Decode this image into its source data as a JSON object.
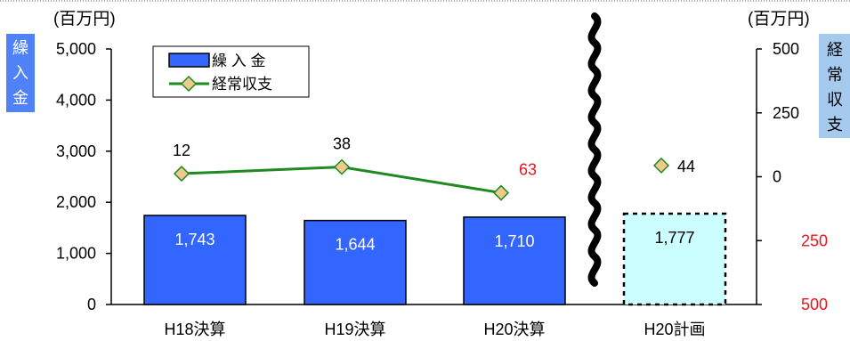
{
  "chart_data": {
    "type": "bar",
    "categories": [
      "H18決算",
      "H19決算",
      "H20決算",
      "H20計画"
    ],
    "left_axis": {
      "unit": "(百万円)",
      "label": "繰入金",
      "range": [
        0,
        5000
      ],
      "ticks": [
        "0",
        "1,000",
        "2,000",
        "3,000",
        "4,000",
        "5,000"
      ]
    },
    "right_axis": {
      "unit": "(百万円)",
      "label": "経常収支",
      "range": [
        -500,
        500
      ],
      "ticks": [
        "500",
        "250",
        "0",
        "250",
        "500"
      ],
      "negative_tick_color": "#e8161b"
    },
    "series": [
      {
        "name": "繰 入 金",
        "type": "bar",
        "axis": "left",
        "values": [
          1743,
          1644,
          1710,
          1777
        ],
        "labels": [
          "1,743",
          "1,644",
          "1,710",
          "1,777"
        ],
        "color": "#3366ff",
        "planned_color": "#ccffff"
      },
      {
        "name": "経常収支",
        "type": "line",
        "axis": "right",
        "values": [
          12,
          38,
          -63,
          44
        ],
        "labels": [
          "12",
          "38",
          "63",
          "44"
        ],
        "line_color": "#1f8a1f",
        "marker_color": "#f0c98c",
        "negative_label_color": "#e8161b"
      }
    ],
    "grid": false,
    "legend_position": "top-left",
    "axis_break": "between H20決算 and H20計画"
  }
}
